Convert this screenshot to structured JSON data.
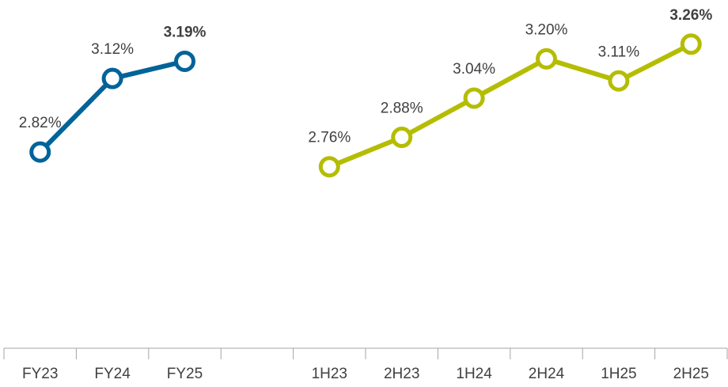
{
  "chart_data": {
    "type": "line",
    "categories": [
      "FY23",
      "FY24",
      "FY25",
      null,
      "1H23",
      "2H23",
      "1H24",
      "2H24",
      "1H25",
      "2H25"
    ],
    "series": [
      {
        "color": "#00639a",
        "values": [
          2.82,
          3.12,
          3.19,
          null,
          null,
          null,
          null,
          null,
          null,
          null
        ],
        "value_labels": [
          "2.82%",
          "3.12%",
          "3.19%",
          null,
          null,
          null,
          null,
          null,
          null,
          null
        ]
      },
      {
        "color": "#b4bd00",
        "values": [
          null,
          null,
          null,
          null,
          2.76,
          2.88,
          3.04,
          3.2,
          3.11,
          3.26
        ],
        "value_labels": [
          null,
          null,
          null,
          null,
          "2.76%",
          "2.88%",
          "3.04%",
          "3.20%",
          "3.11%",
          "3.26%"
        ]
      }
    ],
    "ylim": [
      2.02,
      3.44
    ]
  }
}
